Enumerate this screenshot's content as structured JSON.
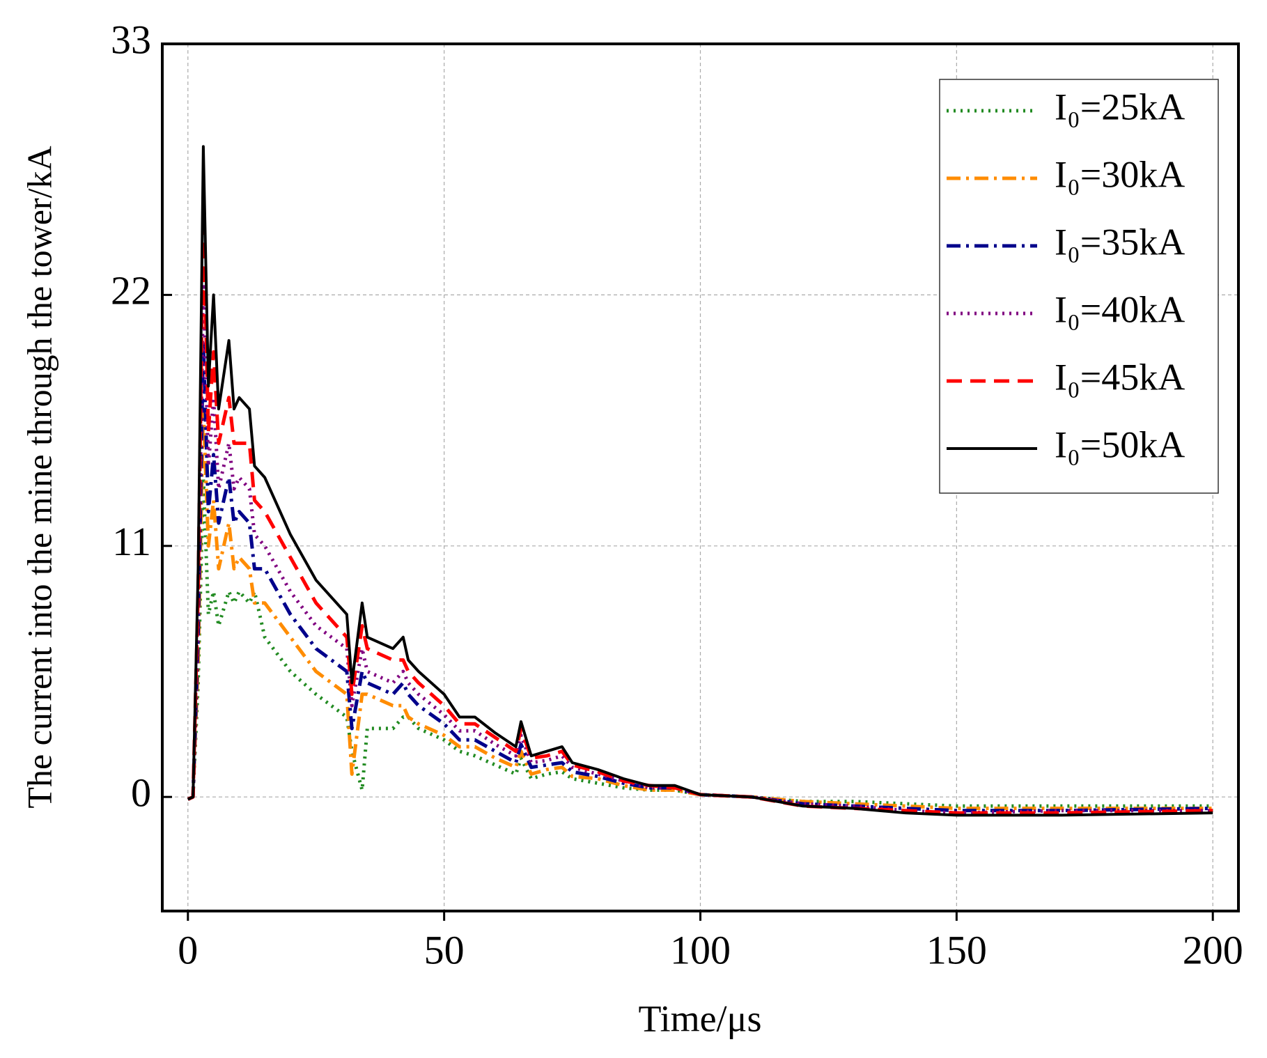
{
  "chart_data": {
    "type": "line",
    "x_label": "Time/μs",
    "y_label": "The current into the mine through the tower/kA",
    "xlim": [
      -5,
      205
    ],
    "ylim": [
      -5,
      33
    ],
    "xticks": [
      0,
      50,
      100,
      150,
      200
    ],
    "yticks": [
      0,
      11,
      22,
      33
    ],
    "grid": true,
    "legend": "upper right",
    "x": [
      0,
      1,
      2,
      3,
      4,
      5,
      6,
      8,
      9,
      10,
      12,
      13,
      15,
      20,
      25,
      31,
      32,
      34,
      35,
      40,
      42,
      43,
      45,
      50,
      53,
      56,
      60,
      64,
      65,
      67,
      70,
      73,
      75,
      80,
      85,
      90,
      95,
      100,
      110,
      120,
      130,
      140,
      150,
      170,
      200
    ],
    "series": [
      {
        "name": "I₀=25kA",
        "color": "#228b22",
        "style": "dotted",
        "values": [
          -0.1,
          0,
          5,
          14,
          8,
          9,
          7.5,
          9,
          8.5,
          9,
          8.5,
          9,
          7,
          5.5,
          4.5,
          3.5,
          2,
          0.3,
          3,
          3,
          3.5,
          3.5,
          3,
          2.5,
          2,
          1.8,
          1.4,
          1,
          1.7,
          0.8,
          1,
          1.1,
          0.8,
          0.6,
          0.4,
          0.3,
          0.3,
          0.1,
          0,
          -0.2,
          -0.2,
          -0.3,
          -0.4,
          -0.4,
          -0.4
        ]
      },
      {
        "name": "I₀=30kA",
        "color": "#ff8c00",
        "style": "dashdot",
        "values": [
          -0.1,
          0,
          6,
          17,
          11,
          13,
          10,
          12,
          10,
          10.5,
          10,
          8.5,
          8.5,
          7,
          5.5,
          4.5,
          1,
          4.5,
          4.5,
          4,
          4,
          3.5,
          3.2,
          2.7,
          2.2,
          2.2,
          1.7,
          1.3,
          2,
          1,
          1.2,
          1.3,
          0.9,
          0.8,
          0.5,
          0.3,
          0.3,
          0.1,
          0,
          -0.2,
          -0.3,
          -0.4,
          -0.5,
          -0.5,
          -0.5
        ]
      },
      {
        "name": "I₀=35kA",
        "color": "#00008b",
        "style": "dashdot",
        "values": [
          -0.1,
          0,
          7,
          20,
          12.5,
          15,
          12,
          14,
          12,
          12.5,
          12,
          10,
          10,
          8,
          6.5,
          5.5,
          3,
          5.5,
          5,
          4.5,
          5,
          4.5,
          4,
          3.2,
          2.5,
          2.5,
          2,
          1.5,
          2.3,
          1.3,
          1.4,
          1.5,
          1.1,
          0.9,
          0.6,
          0.4,
          0.4,
          0.1,
          0,
          -0.3,
          -0.4,
          -0.5,
          -0.6,
          -0.6,
          -0.5
        ]
      },
      {
        "name": "I₀=40kA",
        "color": "#800080",
        "style": "dotted",
        "values": [
          -0.1,
          0,
          8,
          22.5,
          14.5,
          17.5,
          13.5,
          15.5,
          13.5,
          14,
          13.5,
          11.5,
          11,
          9,
          7.5,
          6.5,
          4,
          6.5,
          5.5,
          5,
          5.5,
          5,
          4.5,
          3.6,
          2.9,
          2.9,
          2.3,
          1.8,
          2.7,
          1.5,
          1.6,
          1.8,
          1.3,
          1,
          0.7,
          0.4,
          0.4,
          0.1,
          0,
          -0.3,
          -0.4,
          -0.6,
          -0.7,
          -0.6,
          -0.6
        ]
      },
      {
        "name": "I₀=45kA",
        "color": "#ff0000",
        "style": "dashed",
        "values": [
          -0.1,
          0,
          9,
          25.5,
          16,
          19.5,
          15.5,
          17.5,
          15.5,
          15.5,
          15.5,
          13,
          12.5,
          10.5,
          8.5,
          7,
          4.5,
          7.5,
          6.5,
          6,
          6,
          5.5,
          5,
          4,
          3.2,
          3.2,
          2.6,
          2,
          3,
          1.7,
          1.8,
          2,
          1.4,
          1.1,
          0.7,
          0.5,
          0.4,
          0.1,
          0,
          -0.4,
          -0.5,
          -0.6,
          -0.7,
          -0.7,
          -0.6
        ]
      },
      {
        "name": "I₀=50kA",
        "color": "#000000",
        "style": "solid",
        "values": [
          -0.1,
          0,
          10,
          28.5,
          18,
          22,
          17,
          20,
          17,
          17.5,
          17,
          14.5,
          14,
          11.5,
          9.5,
          8,
          5,
          8.5,
          7,
          6.5,
          7,
          6,
          5.5,
          4.5,
          3.5,
          3.5,
          2.8,
          2.2,
          3.3,
          1.8,
          2,
          2.2,
          1.5,
          1.2,
          0.8,
          0.5,
          0.5,
          0.1,
          0,
          -0.4,
          -0.5,
          -0.7,
          -0.8,
          -0.8,
          -0.7
        ]
      }
    ]
  }
}
